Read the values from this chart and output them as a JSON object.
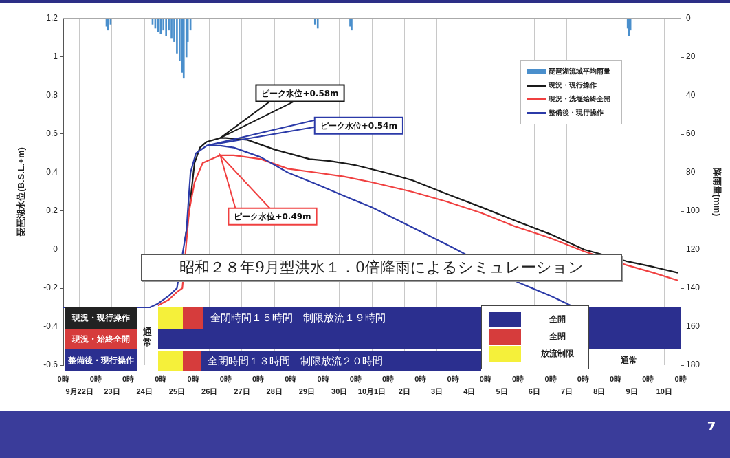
{
  "chart_data": {
    "type": "line",
    "title": "昭和２８年9月型洪水１．0倍降雨によるシミュレーション",
    "ylabel": "琵琶湖水位(B.S.L.+m)",
    "y2label": "降雨量(mm)",
    "xlim": [
      "--09-22T00:00",
      "--10-11T00:00"
    ],
    "xticks": [
      {
        "value": "--09-22T00:00",
        "label": "0時"
      },
      {
        "value": "--09-23T00:00",
        "label": "0時"
      },
      {
        "value": "--09-24T00:00",
        "label": "0時"
      },
      {
        "value": "--09-25T00:00",
        "label": "0時"
      },
      {
        "value": "--09-26T00:00",
        "label": "0時"
      },
      {
        "value": "--09-27T00:00",
        "label": "0時"
      },
      {
        "value": "--09-28T00:00",
        "label": "0時"
      },
      {
        "value": "--09-29T00:00",
        "label": "0時"
      },
      {
        "value": "--09-30T00:00",
        "label": "0時"
      },
      {
        "value": "--10-01T00:00",
        "label": "0時"
      },
      {
        "value": "--10-02T00:00",
        "label": "0時"
      },
      {
        "value": "--10-03T00:00",
        "label": "0時"
      },
      {
        "value": "--10-04T00:00",
        "label": "0時"
      },
      {
        "value": "--10-05T00:00",
        "label": "0時"
      },
      {
        "value": "--10-06T00:00",
        "label": "0時"
      },
      {
        "value": "--10-07T00:00",
        "label": "0時"
      },
      {
        "value": "--10-08T00:00",
        "label": "0時"
      },
      {
        "value": "--10-09T00:00",
        "label": "0時"
      },
      {
        "value": "--10-10T00:00",
        "label": "0時"
      },
      {
        "value": "--10-11T00:00",
        "label": "0時"
      }
    ],
    "x2lim": [
      "--09-22T00:00",
      "--10-11T00:00"
    ],
    "x2ticks": [
      {
        "value": "--09-22T12:00",
        "label": "9月22日"
      },
      {
        "value": "--09-23T12:00",
        "label": "23日"
      },
      {
        "value": "--09-24T12:00",
        "label": "24日"
      },
      {
        "value": "--09-25T12:00",
        "label": "25日"
      },
      {
        "value": "--09-26T12:00",
        "label": "26日"
      },
      {
        "value": "--09-27T12:00",
        "label": "27日"
      },
      {
        "value": "--09-28T12:00",
        "label": "28日"
      },
      {
        "value": "--09-29T12:00",
        "label": "29日"
      },
      {
        "value": "--09-30T12:00",
        "label": "30日"
      },
      {
        "value": "--10-01T12:00",
        "label": "10月1日"
      },
      {
        "value": "--10-02T12:00",
        "label": "2日"
      },
      {
        "value": "--10-03T12:00",
        "label": "3日"
      },
      {
        "value": "--10-04T12:00",
        "label": "4日"
      },
      {
        "value": "--10-05T12:00",
        "label": "5日"
      },
      {
        "value": "--10-06T12:00",
        "label": "6日"
      },
      {
        "value": "--10-07T12:00",
        "label": "7日"
      },
      {
        "value": "--10-08T12:00",
        "label": "8日"
      },
      {
        "value": "--10-09T12:00",
        "label": "9日"
      },
      {
        "value": "--10-10T12:00",
        "label": "10日"
      }
    ],
    "ylim": [
      -0.6,
      1.2
    ],
    "yticks": [
      -0.6,
      -0.4,
      -0.2,
      0,
      0.2,
      0.4,
      0.6,
      0.8,
      1,
      1.2
    ],
    "y2lim": [
      180,
      0
    ],
    "y2ticks": [
      0,
      20,
      40,
      60,
      80,
      100,
      120,
      140,
      160,
      180
    ],
    "grid": "x",
    "legend": "top right",
    "marker": "none",
    "series": [
      {
        "name": "琵琶湖流域平均雨量",
        "type": "bar",
        "axis": "y2",
        "color": "#4a8fcc",
        "x": [
          "--09-23T08:00",
          "--09-23T09:00",
          "--09-23T11:00",
          "--09-24T18:00",
          "--09-24T20:00",
          "--09-24T22:00",
          "--09-25T00:00",
          "--09-25T02:00",
          "--09-25T04:00",
          "--09-25T06:00",
          "--09-25T08:00",
          "--09-25T10:00",
          "--09-25T12:00",
          "--09-25T14:00",
          "--09-25T16:00",
          "--09-25T17:00",
          "--09-25T19:00",
          "--09-25T20:00",
          "--09-25T22:00",
          "--09-29T18:00",
          "--09-29T20:00",
          "--09-30T20:00",
          "--09-30T21:00",
          "--10-09T09:00",
          "--10-09T10:00",
          "--10-09T11:00"
        ],
        "values": [
          4,
          6,
          3,
          3,
          5,
          7,
          8,
          6,
          9,
          6,
          10,
          12,
          18,
          22,
          28,
          31,
          20,
          12,
          6,
          3,
          5,
          4,
          6,
          5,
          9,
          6
        ]
      },
      {
        "name": "現況・現行操作",
        "color": "#1a1a1a",
        "x": [
          "--09-25T18:00",
          "--09-25T21:00",
          "--09-26T01:00",
          "--09-26T05:00",
          "--09-26T10:00",
          "--09-26T20:00",
          "--09-27T00:00",
          "--09-27T16:00",
          "--09-28T12:00",
          "--09-29T14:00",
          "--09-30T05:00",
          "--09-30T23:00",
          "--10-01T22:00",
          "--10-02T18:00",
          "--10-03T19:00",
          "--10-04T21:00",
          "--10-05T22:00",
          "--10-07T00:00",
          "--10-08T01:00",
          "--10-09T08:00",
          "--10-10T04:00",
          "--10-10T22:00"
        ],
        "values": [
          0.05,
          0.2,
          0.45,
          0.53,
          0.56,
          0.58,
          0.58,
          0.57,
          0.52,
          0.47,
          0.46,
          0.44,
          0.4,
          0.36,
          0.29,
          0.22,
          0.15,
          0.08,
          0,
          -0.06,
          -0.09,
          -0.12
        ]
      },
      {
        "name": "現況・洗堰始終全開",
        "color": "#f04040",
        "x": [
          "--09-24T22:00",
          "--09-25T06:00",
          "--09-25T12:00",
          "--09-25T16:00",
          "--09-25T21:00",
          "--09-26T01:00",
          "--09-26T07:00",
          "--09-26T20:00",
          "--09-27T06:00",
          "--09-28T02:00",
          "--09-28T22:00",
          "--09-29T19:00",
          "--09-30T15:00",
          "--10-01T12:00",
          "--10-02T18:00",
          "--10-03T19:00",
          "--10-04T21:00",
          "--10-05T22:00",
          "--10-07T00:00",
          "--10-08T01:00",
          "--10-09T08:00",
          "--10-10T04:00",
          "--10-10T22:00"
        ],
        "values": [
          -0.29,
          -0.26,
          -0.22,
          -0.2,
          0.2,
          0.35,
          0.45,
          0.49,
          0.49,
          0.47,
          0.42,
          0.4,
          0.38,
          0.35,
          0.3,
          0.25,
          0.19,
          0.12,
          0.06,
          -0.01,
          -0.08,
          -0.12,
          -0.16
        ]
      },
      {
        "name": "整備後・現行操作",
        "color": "#2b3aa8",
        "x": [
          "--09-22T00:00",
          "--09-24T16:00",
          "--09-24T22:00",
          "--09-25T06:00",
          "--09-25T12:00",
          "--09-25T19:00",
          "--09-25T22:00",
          "--09-26T02:00",
          "--09-26T10:00",
          "--09-26T20:00",
          "--09-27T06:00",
          "--09-28T02:00",
          "--09-28T22:00",
          "--09-29T19:00",
          "--09-30T15:00",
          "--10-01T12:00",
          "--10-02T08:00",
          "--10-03T04:00",
          "--10-04T00:00",
          "--10-06T00:00",
          "--10-07T00:00",
          "--10-07T15:00"
        ],
        "values": [
          -0.3,
          -0.3,
          -0.28,
          -0.24,
          -0.2,
          0.1,
          0.4,
          0.5,
          0.54,
          0.54,
          0.53,
          0.48,
          0.4,
          0.34,
          0.28,
          0.22,
          0.15,
          0.08,
          0.01,
          -0.17,
          -0.24,
          -0.29
        ]
      }
    ],
    "annotations": [
      "ピーク水位+0.58m",
      "ピーク水位+0.49m",
      "ピーク水位+0.54m",
      "現況・現行操作",
      "現況・始終全開",
      "整備後・現行操作",
      "通常",
      "全閉時間１５時間　制限放流１９時間",
      "全閉時間１３時間　制限放流２０時間",
      "全開",
      "全閉",
      "放流制限",
      "通常",
      "7"
    ]
  }
}
